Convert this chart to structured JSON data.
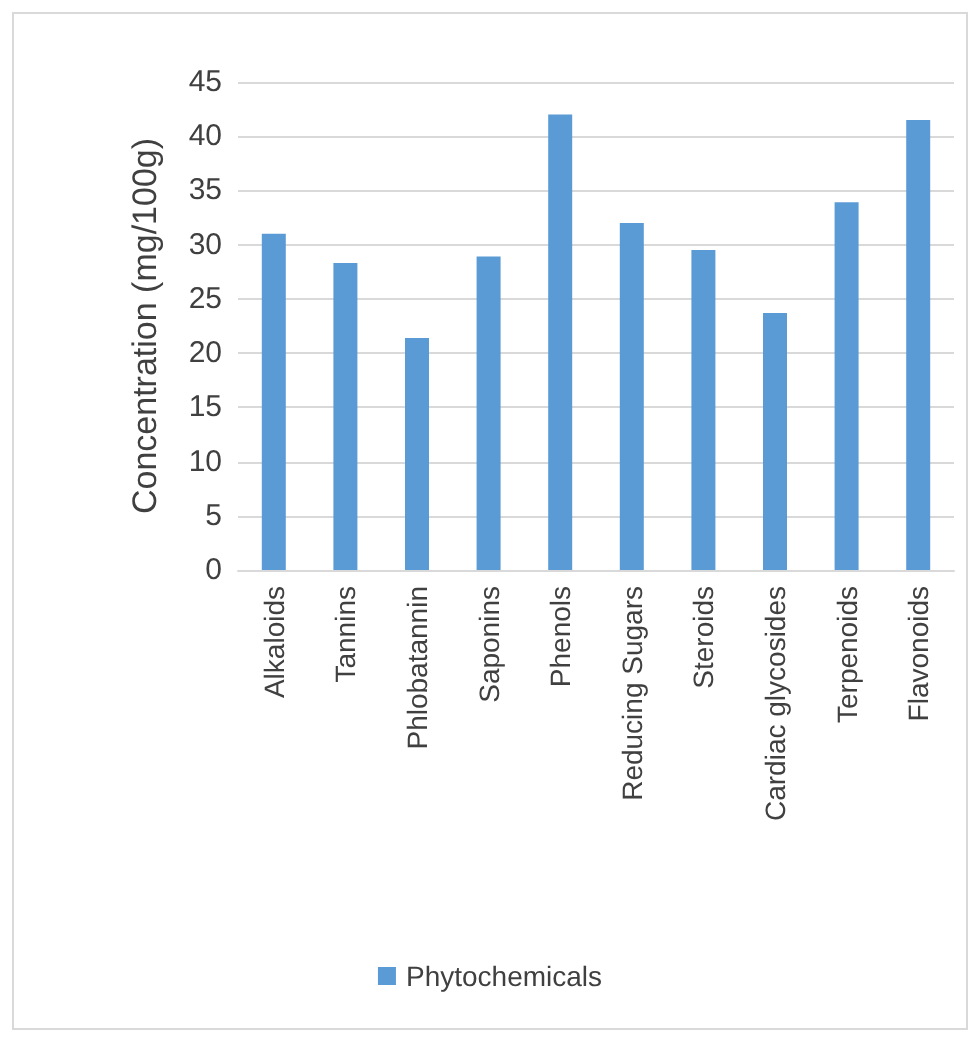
{
  "chart_data": {
    "type": "bar",
    "ylabel": "Concentration (mg/100g)",
    "categories": [
      "Alkaloids",
      "Tannins",
      "Phlobatannin",
      "Saponins",
      "Phenols",
      "Reducing Sugars",
      "Steroids",
      "Cardiac glycosides",
      "Terpenoids",
      "Flavonoids"
    ],
    "series": [
      {
        "name": "Phytochemicals",
        "color": "#5b9bd5",
        "values": [
          31,
          28.3,
          21.4,
          28.9,
          42,
          32,
          29.5,
          23.7,
          33.9,
          41.5
        ]
      }
    ],
    "ylim": [
      0,
      45
    ],
    "yticks": [
      0,
      5,
      10,
      15,
      20,
      25,
      30,
      35,
      40,
      45
    ],
    "grid": "y",
    "legend": "bottom"
  }
}
